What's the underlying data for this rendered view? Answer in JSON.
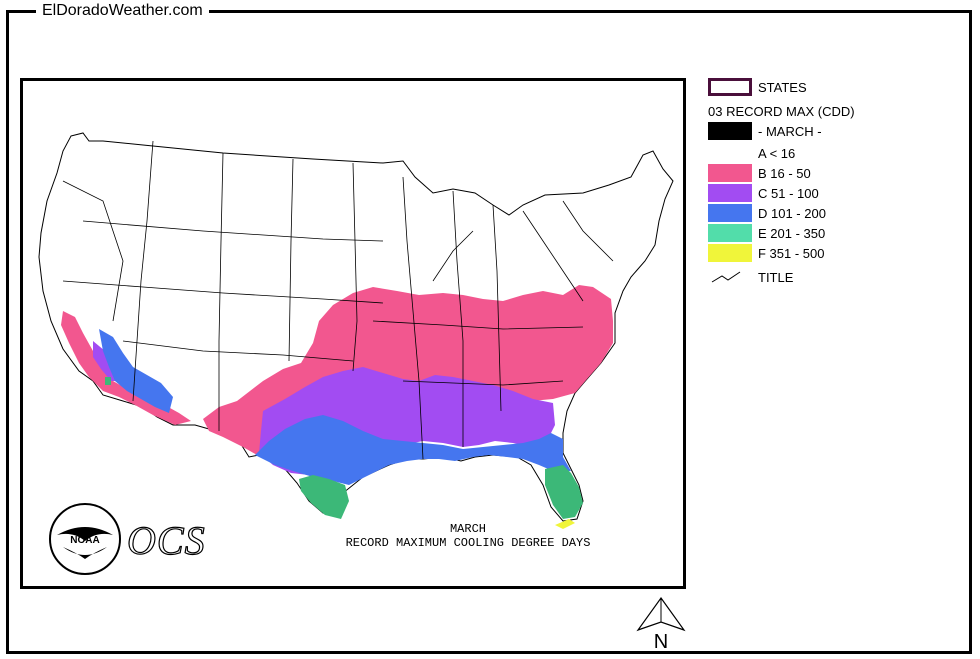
{
  "site": {
    "title": "ElDoradoWeather.com"
  },
  "map": {
    "caption_line1": "MARCH",
    "caption_line2": "RECORD MAXIMUM COOLING DEGREE DAYS",
    "logo_text": "NOAA",
    "ocs_text": "OCS",
    "north_label": "N"
  },
  "legend": {
    "states_label": "STATES",
    "title": "03 RECORD MAX (CDD)",
    "month_label": "- MARCH -",
    "classes": [
      {
        "label": "A < 16",
        "color": "#ffffff"
      },
      {
        "label": "B 16 - 50",
        "color": "#f2578f"
      },
      {
        "label": "C 51 - 100",
        "color": "#a24cf2"
      },
      {
        "label": "D 101 - 200",
        "color": "#4576ef"
      },
      {
        "label": "E 201 - 350",
        "color": "#52ddaa"
      },
      {
        "label": "F 351 - 500",
        "color": "#f0f53a"
      }
    ],
    "title_line_label": "TITLE"
  },
  "colors": {
    "states_outline": "#4a0f3b",
    "month_swatch": "#000000",
    "zone_e_map": "#3cb878"
  }
}
